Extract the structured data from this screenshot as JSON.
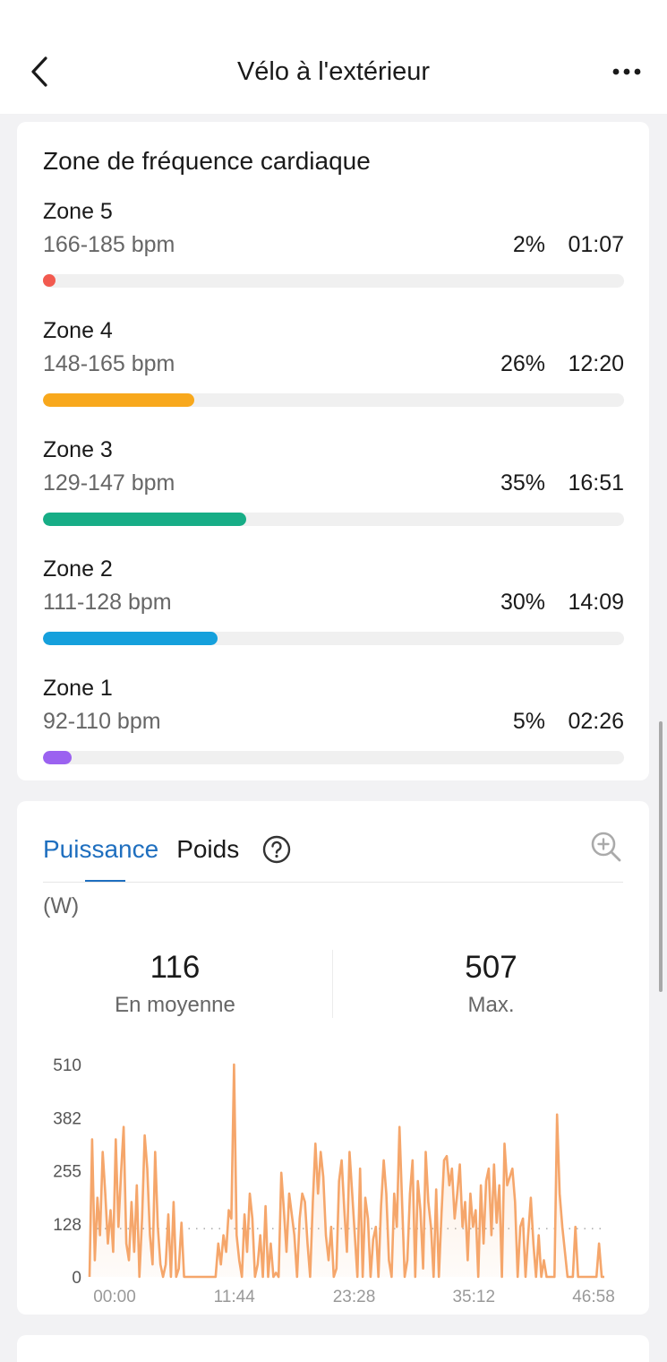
{
  "header": {
    "back_icon": "chevron-left-icon",
    "title": "Vélo à l'extérieur",
    "more_icon": "more-horizontal-icon"
  },
  "heart_rate": {
    "title": "Zone de fréquence cardiaque",
    "zones": [
      {
        "name": "Zone 5",
        "range": "166-185 bpm",
        "percent": "2%",
        "time": "01:07",
        "fraction": 0.02,
        "color": "#f25a4f"
      },
      {
        "name": "Zone 4",
        "range": "148-165 bpm",
        "percent": "26%",
        "time": "12:20",
        "fraction": 0.26,
        "color": "#f8a81c"
      },
      {
        "name": "Zone 3",
        "range": "129-147 bpm",
        "percent": "35%",
        "time": "16:51",
        "fraction": 0.35,
        "color": "#17ad86"
      },
      {
        "name": "Zone 2",
        "range": "111-128 bpm",
        "percent": "30%",
        "time": "14:09",
        "fraction": 0.3,
        "color": "#15a0dc"
      },
      {
        "name": "Zone 1",
        "range": "92-110 bpm",
        "percent": "5%",
        "time": "02:26",
        "fraction": 0.05,
        "color": "#9b62f0"
      }
    ]
  },
  "power": {
    "tabs": [
      {
        "label": "Puissance",
        "active": true
      },
      {
        "label": "Poids",
        "active": false
      }
    ],
    "help_icon": "help-circle-icon",
    "zoom_icon": "zoom-in-icon",
    "unit": "(W)",
    "stats": [
      {
        "value": "116",
        "label": "En moyenne"
      },
      {
        "value": "507",
        "label": "Max."
      }
    ]
  },
  "chart_data": {
    "type": "area",
    "color": "#f5a66b",
    "yticks": [
      "510",
      "382",
      "255",
      "128",
      "0"
    ],
    "ylim": [
      0,
      510
    ],
    "average": 116,
    "xticks": [
      "00:00",
      "11:44",
      "23:28",
      "35:12",
      "46:58"
    ],
    "duration_min": 46.97,
    "values": [
      0,
      330,
      40,
      190,
      100,
      300,
      200,
      80,
      160,
      60,
      330,
      120,
      250,
      360,
      80,
      40,
      180,
      60,
      220,
      0,
      140,
      340,
      260,
      100,
      30,
      300,
      120,
      30,
      0,
      30,
      150,
      0,
      180,
      0,
      20,
      130,
      0,
      0,
      0,
      0,
      0,
      0,
      0,
      0,
      0,
      0,
      0,
      0,
      0,
      80,
      30,
      100,
      60,
      160,
      140,
      510,
      100,
      40,
      0,
      150,
      60,
      200,
      140,
      0,
      30,
      100,
      0,
      170,
      0,
      80,
      0,
      10,
      0,
      250,
      160,
      60,
      200,
      150,
      100,
      0,
      140,
      200,
      180,
      80,
      0,
      180,
      320,
      200,
      300,
      240,
      100,
      40,
      120,
      0,
      20,
      230,
      280,
      160,
      60,
      300,
      200,
      100,
      0,
      260,
      0,
      190,
      140,
      0,
      90,
      120,
      0,
      170,
      280,
      200,
      40,
      0,
      200,
      120,
      360,
      180,
      0,
      40,
      200,
      280,
      0,
      230,
      160,
      20,
      300,
      180,
      120,
      0,
      210,
      0,
      150,
      280,
      290,
      220,
      260,
      140,
      200,
      270,
      120,
      180,
      40,
      200,
      120,
      160,
      0,
      220,
      80,
      230,
      260,
      100,
      270,
      130,
      220,
      0,
      320,
      220,
      240,
      260,
      180,
      0,
      120,
      140,
      0,
      100,
      190,
      80,
      0,
      100,
      0,
      40,
      0,
      0,
      0,
      0,
      390,
      200,
      120,
      60,
      0,
      0,
      0,
      120,
      0,
      0,
      0,
      0,
      0,
      0,
      0,
      0,
      80,
      0,
      0
    ]
  }
}
